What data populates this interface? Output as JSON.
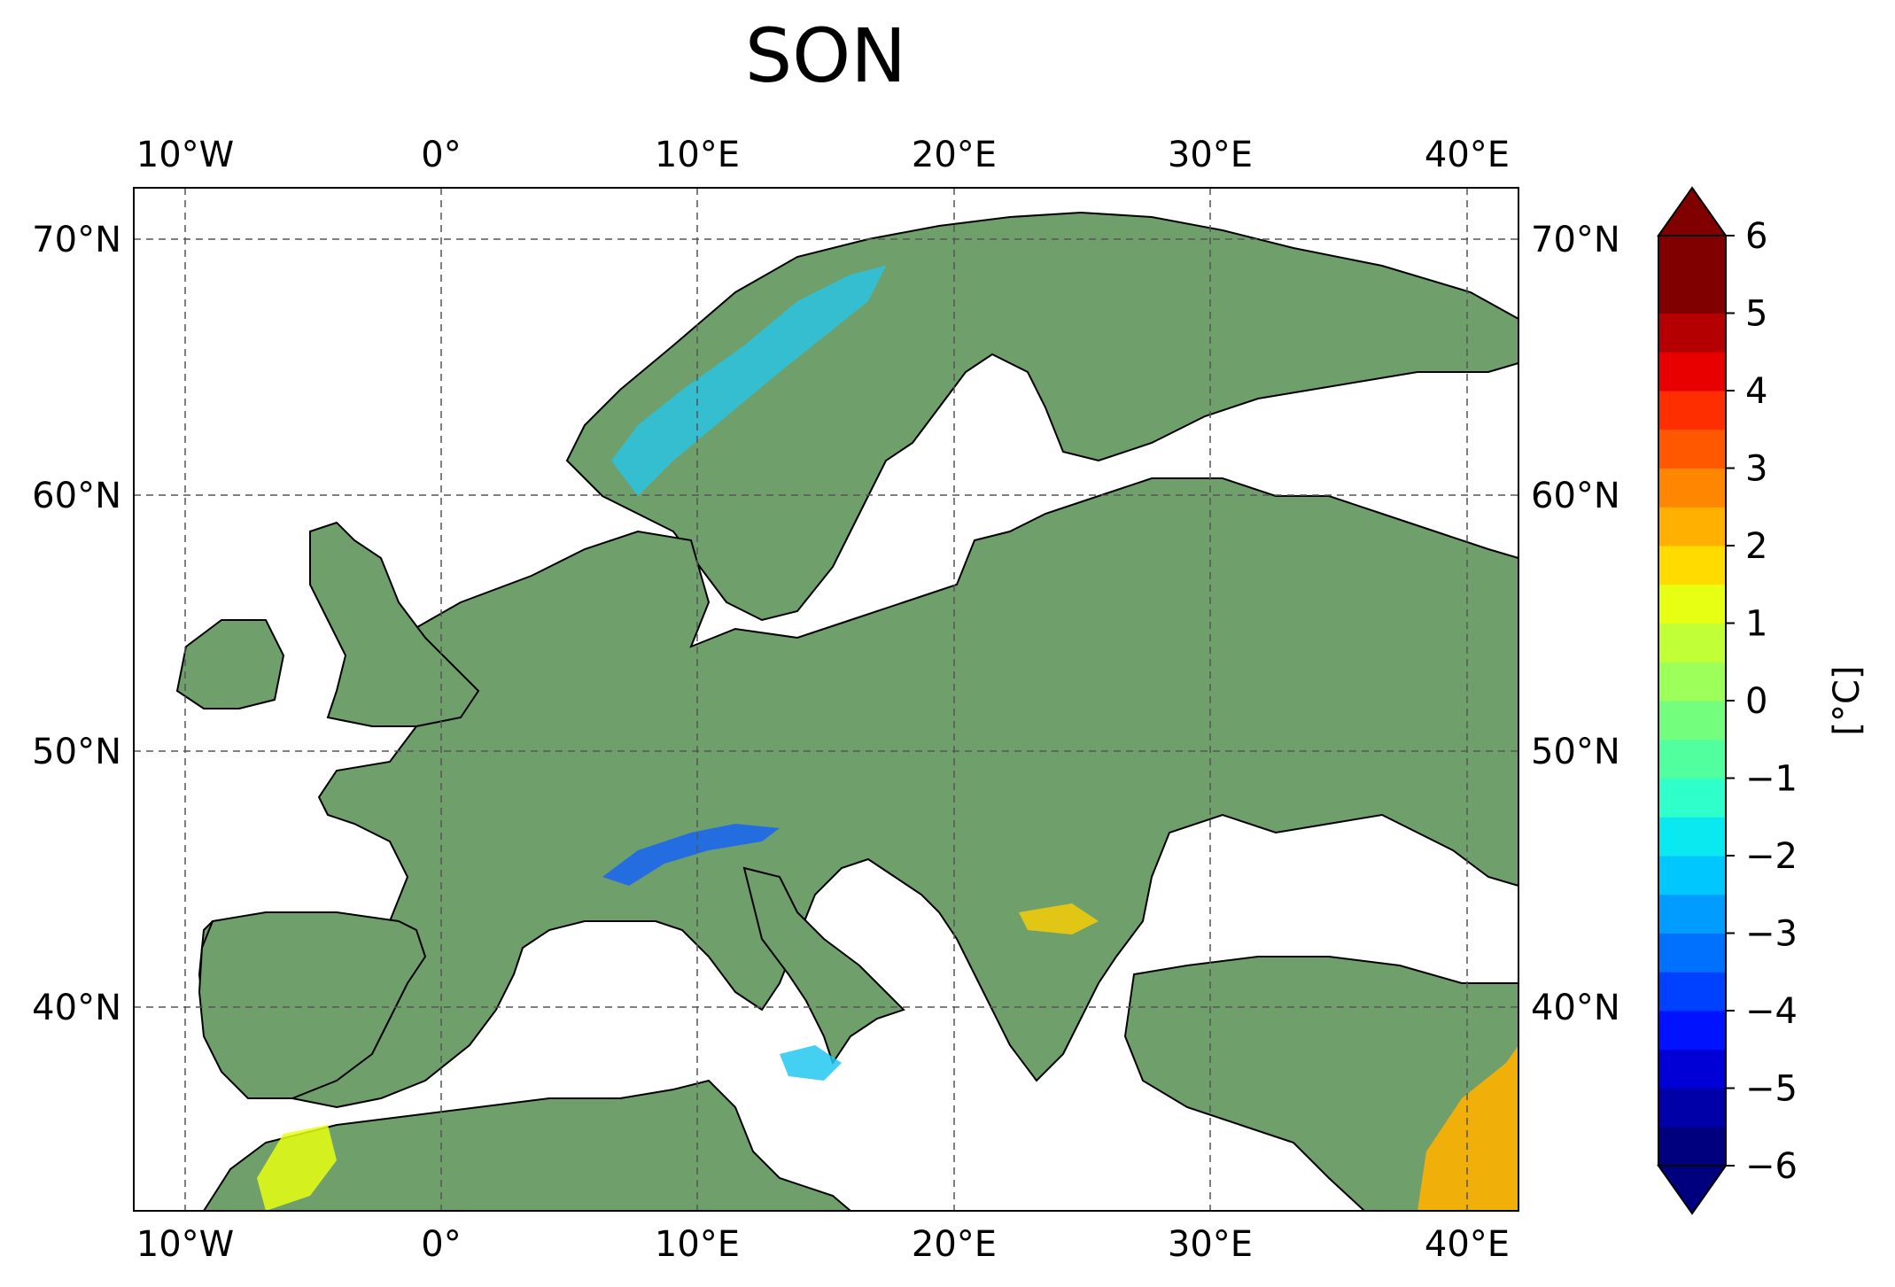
{
  "title": "SON",
  "map": {
    "lon_ticks": [
      "10°W",
      "0°",
      "10°E",
      "20°E",
      "30°E",
      "40°E"
    ],
    "lat_ticks": [
      "70°N",
      "60°N",
      "50°N",
      "40°N"
    ],
    "lon_range": [
      -12,
      42
    ],
    "lat_range": [
      32,
      72
    ],
    "land_color": "#6fa06c",
    "gridlines": true
  },
  "colorbar": {
    "label": "[°C]",
    "tick_labels": [
      "6",
      "5",
      "4",
      "3",
      "2",
      "1",
      "0",
      "−1",
      "−2",
      "−3",
      "−4",
      "−5",
      "−6"
    ],
    "range": [
      -6,
      6
    ],
    "extend": "both",
    "colors": [
      "#00007f",
      "#0000a8",
      "#0000d6",
      "#0012ff",
      "#0040ff",
      "#0070ff",
      "#009cff",
      "#00c8ff",
      "#0ae8f0",
      "#2fffca",
      "#52ff9f",
      "#73ff7d",
      "#9cff5a",
      "#c1ff36",
      "#e6ff12",
      "#ffdb00",
      "#ffb000",
      "#ff8600",
      "#ff5800",
      "#ff2e00",
      "#e80000",
      "#b40000",
      "#800000",
      "#800000"
    ]
  }
}
